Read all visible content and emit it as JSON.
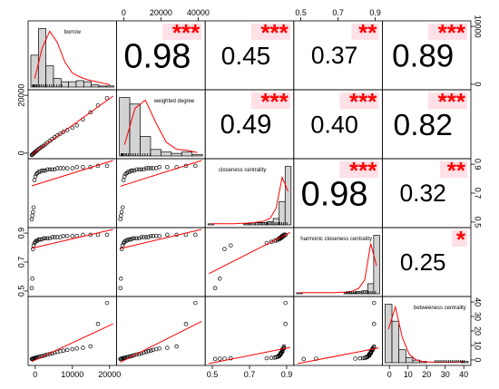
{
  "chart_data": {
    "type": "scatter",
    "variables": [
      "borrow",
      "weighted degree",
      "closeness centrality",
      "harmonic closeness centrality",
      "betweeness centrality"
    ],
    "ticks": {
      "top_axis": [
        {
          "col": 1,
          "labels": [
            "0",
            "20000",
            "40000"
          ]
        },
        {
          "col": 3,
          "labels": [
            "0.5",
            "0.7",
            "0.9"
          ]
        }
      ],
      "bottom_axis": [
        {
          "col": 0,
          "labels": [
            "0",
            "10000",
            "20000"
          ]
        },
        {
          "col": 2,
          "labels": [
            "0.5",
            "0.7",
            "0.9"
          ]
        },
        {
          "col": 4,
          "labels": [
            "0",
            "10",
            "20",
            "30",
            "40"
          ]
        }
      ],
      "left_axis": [
        {
          "row": 1,
          "labels": [
            "0",
            "20000"
          ]
        },
        {
          "row": 3,
          "labels": [
            "0.5",
            "0.7",
            "0.9"
          ]
        }
      ],
      "right_axis": [
        {
          "row": 0,
          "labels": [
            "0",
            "10000"
          ]
        },
        {
          "row": 2,
          "labels": [
            "0.5",
            "0.7",
            "0.9"
          ]
        },
        {
          "row": 4,
          "labels": [
            "0",
            "10",
            "20",
            "30",
            "40"
          ]
        }
      ]
    },
    "correlations": [
      {
        "row": 0,
        "col": 1,
        "value": "0.98",
        "stars": "***",
        "size": 1.0
      },
      {
        "row": 0,
        "col": 2,
        "value": "0.45",
        "stars": "***",
        "size": 0.5
      },
      {
        "row": 0,
        "col": 3,
        "value": "0.37",
        "stars": "**",
        "size": 0.42
      },
      {
        "row": 0,
        "col": 4,
        "value": "0.89",
        "stars": "***",
        "size": 0.85
      },
      {
        "row": 1,
        "col": 2,
        "value": "0.49",
        "stars": "***",
        "size": 0.56
      },
      {
        "row": 1,
        "col": 3,
        "value": "0.40",
        "stars": "***",
        "size": 0.45
      },
      {
        "row": 1,
        "col": 4,
        "value": "0.82",
        "stars": "***",
        "size": 0.78
      },
      {
        "row": 2,
        "col": 3,
        "value": "0.98",
        "stars": "***",
        "size": 1.0
      },
      {
        "row": 2,
        "col": 4,
        "value": "0.32",
        "stars": "**",
        "size": 0.42
      },
      {
        "row": 3,
        "col": 4,
        "value": "0.25",
        "stars": "*",
        "size": 0.4
      }
    ],
    "histograms": [
      {
        "var": "borrow",
        "range": [
          0,
          25000
        ],
        "counts": [
          30,
          55,
          20,
          8,
          5,
          5,
          6,
          5,
          2,
          1,
          1
        ],
        "density": [
          0.15,
          0.7,
          1.0,
          0.8,
          0.45,
          0.25,
          0.18,
          0.13,
          0.1,
          0.07,
          0.04
        ]
      },
      {
        "var": "weighted degree",
        "range": [
          0,
          50000
        ],
        "counts": [
          45,
          40,
          15,
          5,
          3,
          2,
          3,
          1
        ],
        "density": [
          0.2,
          0.85,
          1.0,
          0.6,
          0.25,
          0.12,
          0.1,
          0.06
        ]
      },
      {
        "var": "closeness centrality",
        "range": [
          0.45,
          1.0
        ],
        "counts": [
          1,
          0,
          0,
          0,
          0,
          0,
          1,
          1,
          2,
          2,
          3,
          6,
          22,
          55
        ],
        "density": [
          0.02,
          0.02,
          0.02,
          0.02,
          0.02,
          0.03,
          0.03,
          0.04,
          0.05,
          0.07,
          0.12,
          0.3,
          0.85,
          0.6
        ]
      },
      {
        "var": "harmonic closeness centrality",
        "range": [
          0.45,
          1.0
        ],
        "counts": [
          1,
          0,
          0,
          0,
          0,
          0,
          0,
          0,
          1,
          1,
          2,
          3,
          10,
          58
        ],
        "density": [
          0.02,
          0.02,
          0.02,
          0.02,
          0.02,
          0.02,
          0.02,
          0.03,
          0.03,
          0.05,
          0.1,
          0.25,
          0.9,
          0.5
        ]
      },
      {
        "var": "betweeness centrality",
        "range": [
          -2,
          42
        ],
        "counts": [
          45,
          32,
          10,
          4,
          2,
          1,
          0,
          0,
          0,
          0,
          0,
          1
        ],
        "density": [
          0.6,
          1.0,
          0.45,
          0.15,
          0.05,
          0.02,
          0.01,
          0.01,
          0.01,
          0.01,
          0.01,
          0.02
        ]
      }
    ],
    "scatter_data": {
      "borrow": [
        0,
        200,
        400,
        600,
        900,
        1200,
        1500,
        1900,
        2300,
        2800,
        3300,
        3900,
        4500,
        5200,
        6000,
        6800,
        7600,
        8500,
        9500,
        10500,
        11800,
        13500,
        15000,
        17000,
        19500,
        22000,
        25000
      ],
      "weighted": [
        50,
        400,
        900,
        1500,
        2100,
        2700,
        3300,
        4200,
        5100,
        6000,
        6900,
        7800,
        9000,
        10500,
        12000,
        13500,
        15000,
        16500,
        18000,
        19500,
        21000,
        23000,
        25000,
        30000,
        36000,
        42000,
        48000
      ],
      "closeness": [
        0.52,
        0.55,
        0.58,
        0.62,
        0.85,
        0.88,
        0.9,
        0.91,
        0.92,
        0.92,
        0.93,
        0.93,
        0.93,
        0.94,
        0.94,
        0.94,
        0.94,
        0.95,
        0.95,
        0.95,
        0.95,
        0.95,
        0.96,
        0.96,
        0.96,
        0.97,
        0.97
      ],
      "harmonic": [
        0.52,
        0.6,
        0.85,
        0.88,
        0.9,
        0.91,
        0.92,
        0.92,
        0.93,
        0.93,
        0.93,
        0.94,
        0.94,
        0.94,
        0.94,
        0.95,
        0.95,
        0.95,
        0.95,
        0.96,
        0.96,
        0.96,
        0.96,
        0.97,
        0.97,
        0.97,
        0.97
      ],
      "betweeness": [
        0,
        0.2,
        0.3,
        0.5,
        0.6,
        0.8,
        1.0,
        1.2,
        1.5,
        1.8,
        2.0,
        2.4,
        2.8,
        3.2,
        3.6,
        4.0,
        4.5,
        5.0,
        5.5,
        6.0,
        6.5,
        7.0,
        7.5,
        8.0,
        9.0,
        25.0,
        40.0
      ]
    }
  }
}
